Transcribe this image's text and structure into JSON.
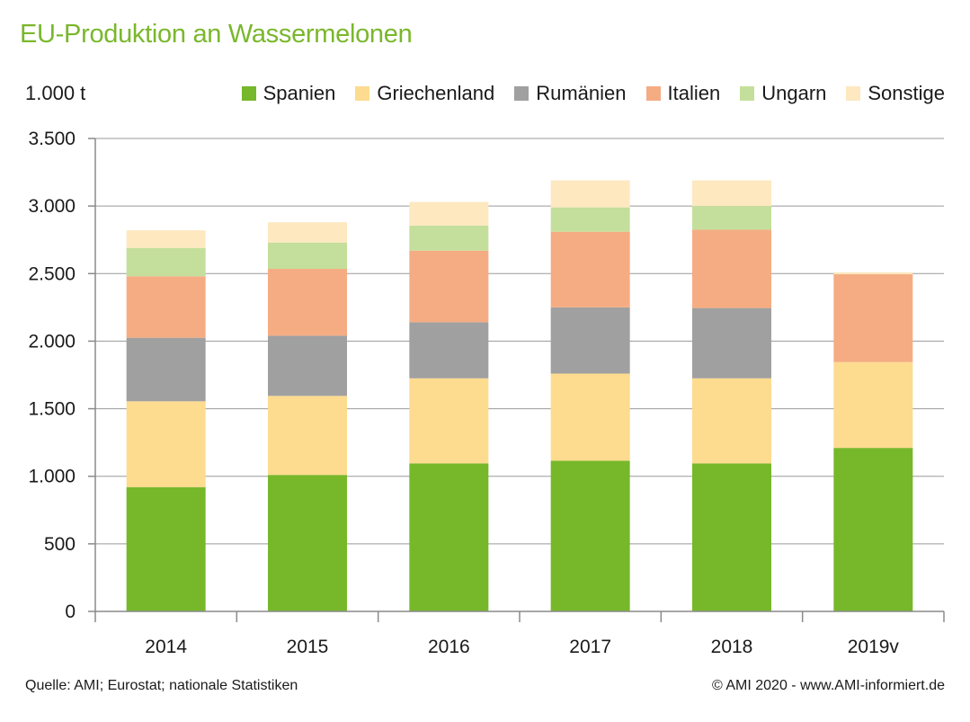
{
  "chart_data": {
    "type": "bar",
    "stacked": true,
    "title": "EU-Produktion an Wassermelonen",
    "ylabel": "1.000 t",
    "xlabel": "",
    "ylim": [
      0,
      3500
    ],
    "yticks": [
      0,
      500,
      1000,
      1500,
      2000,
      2500,
      3000,
      3500
    ],
    "ytick_labels": [
      "0",
      "500",
      "1.000",
      "1.500",
      "2.000",
      "2.500",
      "3.000",
      "3.500"
    ],
    "categories": [
      "2014",
      "2015",
      "2016",
      "2017",
      "2018",
      "2019v"
    ],
    "series": [
      {
        "name": "Spanien",
        "color": "#76b82a",
        "values": [
          920,
          1010,
          1095,
          1115,
          1095,
          1210
        ]
      },
      {
        "name": "Griechenland",
        "color": "#fddb8f",
        "values": [
          635,
          585,
          630,
          645,
          630,
          635
        ]
      },
      {
        "name": "Rumänien",
        "color": "#a0a0a0",
        "values": [
          470,
          445,
          415,
          490,
          520,
          0
        ]
      },
      {
        "name": "Italien",
        "color": "#f5ac83",
        "values": [
          455,
          495,
          530,
          560,
          580,
          650
        ]
      },
      {
        "name": "Ungarn",
        "color": "#c4df9b",
        "values": [
          210,
          195,
          185,
          180,
          175,
          0
        ]
      },
      {
        "name": "Sonstige",
        "color": "#fde8c0",
        "values": [
          130,
          150,
          175,
          200,
          190,
          15
        ]
      }
    ],
    "grid": true,
    "legend": "top-right"
  },
  "footer": {
    "source": "Quelle: AMI; Eurostat; nationale Statistiken",
    "copyright": "© AMI 2020 - www.AMI-informiert.de"
  }
}
